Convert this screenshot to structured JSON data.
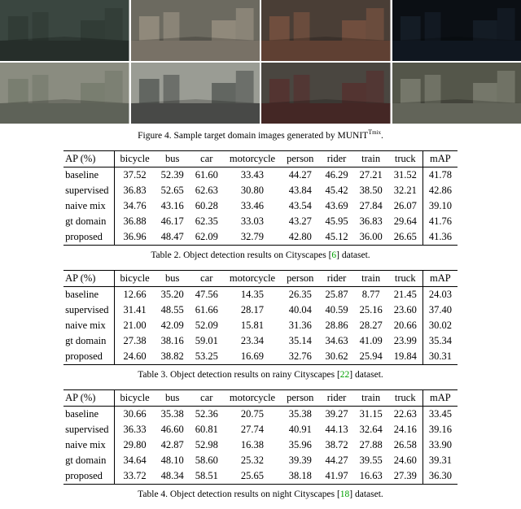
{
  "figure": {
    "caption_prefix": "Figure 4. Sample target domain images generated by MUNIT",
    "caption_sup": "T",
    "caption_sub": "mix",
    "caption_suffix": ".",
    "thumbs": [
      {
        "bg": "#3a4640",
        "accent": "#2c3530"
      },
      {
        "bg": "#6c6a60",
        "accent": "#a89e8e"
      },
      {
        "bg": "#4a3e36",
        "accent": "#8a5a44"
      },
      {
        "bg": "#0b0f14",
        "accent": "#1a2430"
      },
      {
        "bg": "#8a8c80",
        "accent": "#6e7466"
      },
      {
        "bg": "#9a9c94",
        "accent": "#3e4240"
      },
      {
        "bg": "#4a4640",
        "accent": "#5a2828"
      },
      {
        "bg": "#54564a",
        "accent": "#8c8e80"
      }
    ]
  },
  "headers": {
    "metric": "AP (%)",
    "cols": [
      "bicycle",
      "bus",
      "car",
      "motorcycle",
      "person",
      "rider",
      "train",
      "truck",
      "mAP"
    ]
  },
  "row_labels": [
    "baseline",
    "supervised",
    "naive mix",
    "gt domain",
    "proposed"
  ],
  "table2": {
    "caption_prefix": "Table 2. Object detection results on Cityscapes [",
    "cite": "6",
    "caption_suffix": "] dataset.",
    "rows": [
      [
        "37.52",
        "52.39",
        "61.60",
        "33.43",
        "44.27",
        "46.29",
        "27.21",
        "31.52",
        "41.78"
      ],
      [
        "36.83",
        "52.65",
        "62.63",
        "30.80",
        "43.84",
        "45.42",
        "38.50",
        "32.21",
        "42.86"
      ],
      [
        "34.76",
        "43.16",
        "60.28",
        "33.46",
        "43.54",
        "43.69",
        "27.84",
        "26.07",
        "39.10"
      ],
      [
        "36.88",
        "46.17",
        "62.35",
        "33.03",
        "43.27",
        "45.95",
        "36.83",
        "29.64",
        "41.76"
      ],
      [
        "36.96",
        "48.47",
        "62.09",
        "32.79",
        "42.80",
        "45.12",
        "36.00",
        "26.65",
        "41.36"
      ]
    ]
  },
  "table3": {
    "caption_prefix": "Table 3. Object detection results on rainy Cityscapes [",
    "cite": "22",
    "caption_suffix": "] dataset.",
    "rows": [
      [
        "12.66",
        "35.20",
        "47.56",
        "14.35",
        "26.35",
        "25.87",
        "8.77",
        "21.45",
        "24.03"
      ],
      [
        "31.41",
        "48.55",
        "61.66",
        "28.17",
        "40.04",
        "40.59",
        "25.16",
        "23.60",
        "37.40"
      ],
      [
        "21.00",
        "42.09",
        "52.09",
        "15.81",
        "31.36",
        "28.86",
        "28.27",
        "20.66",
        "30.02"
      ],
      [
        "27.38",
        "38.16",
        "59.01",
        "23.34",
        "35.14",
        "34.63",
        "41.09",
        "23.99",
        "35.34"
      ],
      [
        "24.60",
        "38.82",
        "53.25",
        "16.69",
        "32.76",
        "30.62",
        "25.94",
        "19.84",
        "30.31"
      ]
    ]
  },
  "table4": {
    "caption_prefix": "Table 4. Object detection results on night Cityscapes [",
    "cite": "18",
    "caption_suffix": "] dataset.",
    "rows": [
      [
        "30.66",
        "35.38",
        "52.36",
        "20.75",
        "35.38",
        "39.27",
        "31.15",
        "22.63",
        "33.45"
      ],
      [
        "36.33",
        "46.60",
        "60.81",
        "27.74",
        "40.91",
        "44.13",
        "32.64",
        "24.16",
        "39.16"
      ],
      [
        "29.80",
        "42.87",
        "52.98",
        "16.38",
        "35.96",
        "38.72",
        "27.88",
        "26.58",
        "33.90"
      ],
      [
        "34.64",
        "48.10",
        "58.60",
        "25.32",
        "39.39",
        "44.27",
        "39.55",
        "24.60",
        "39.31"
      ],
      [
        "33.72",
        "48.34",
        "58.51",
        "25.65",
        "38.18",
        "41.97",
        "16.63",
        "27.39",
        "36.30"
      ]
    ]
  }
}
